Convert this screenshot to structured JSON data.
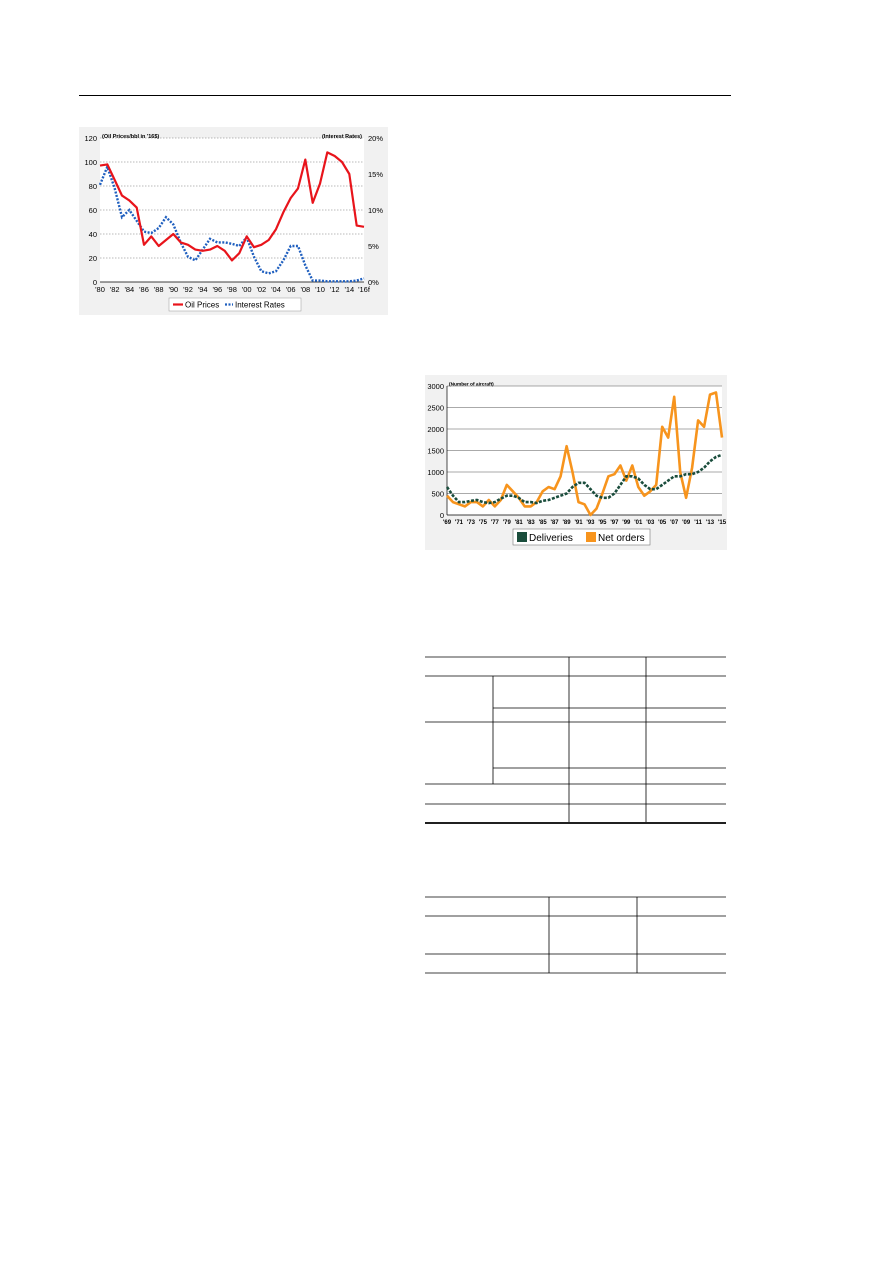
{
  "chart_data": [
    {
      "type": "line",
      "title": "",
      "left_axis_label": "(Oil Prices/bbl in '16$)",
      "right_axis_label": "(Interest Rates)",
      "x_ticks": [
        "'80",
        "'82",
        "'84",
        "'86",
        "'88",
        "'90",
        "'92",
        "'94",
        "'96",
        "'98",
        "'00",
        "'02",
        "'04",
        "'06",
        "'08",
        "'10",
        "'12",
        "'14",
        "'16f"
      ],
      "y_left_ticks": [
        "0",
        "20",
        "40",
        "60",
        "80",
        "100",
        "120"
      ],
      "y_left_range": [
        0,
        120
      ],
      "y_right_ticks": [
        "0%",
        "5%",
        "10%",
        "15%",
        "20%"
      ],
      "y_right_range": [
        0,
        20
      ],
      "grid": "horizontal dotted",
      "legend_position": "bottom",
      "x": [
        1980,
        1981,
        1982,
        1983,
        1984,
        1985,
        1986,
        1987,
        1988,
        1989,
        1990,
        1991,
        1992,
        1993,
        1994,
        1995,
        1996,
        1997,
        1998,
        1999,
        2000,
        2001,
        2002,
        2003,
        2004,
        2005,
        2006,
        2007,
        2008,
        2009,
        2010,
        2011,
        2012,
        2013,
        2014,
        2015,
        2016
      ],
      "series": [
        {
          "name": "Oil Prices",
          "axis": "left",
          "color": "#e8141b",
          "style": "solid",
          "values": [
            97,
            98,
            85,
            72,
            68,
            62,
            31,
            38,
            30,
            35,
            40,
            33,
            31,
            27,
            26,
            27,
            30,
            26,
            18,
            24,
            38,
            29,
            31,
            35,
            44,
            58,
            70,
            78,
            102,
            66,
            82,
            108,
            105,
            100,
            90,
            47,
            46
          ]
        },
        {
          "name": "Interest Rates",
          "axis": "right",
          "color": "#1f5fbf",
          "style": "dotted",
          "values": [
            13.5,
            16,
            13,
            9,
            10,
            8.5,
            7,
            6.8,
            7.5,
            9,
            8,
            5.5,
            3.5,
            3,
            4.5,
            6,
            5.5,
            5.5,
            5.3,
            5,
            6.2,
            3.5,
            1.5,
            1.2,
            1.5,
            3,
            5,
            5,
            2.3,
            0.2,
            0.2,
            0.1,
            0.1,
            0.1,
            0.1,
            0.2,
            0.5
          ]
        }
      ]
    },
    {
      "type": "line",
      "title": "",
      "y_axis_label": "(Number of aircraft)",
      "x_ticks": [
        "'69",
        "'71",
        "'73",
        "'75",
        "'77",
        "'79",
        "'81",
        "'83",
        "'85",
        "'87",
        "'89",
        "'91",
        "'93",
        "'95",
        "'97",
        "'99",
        "'01",
        "'03",
        "'05",
        "'07",
        "'09",
        "'11",
        "'13",
        "'15"
      ],
      "y_ticks": [
        "0",
        "500",
        "1000",
        "1500",
        "2000",
        "2500",
        "3000"
      ],
      "y_range": [
        0,
        3000
      ],
      "grid": "horizontal",
      "legend_position": "bottom",
      "x": [
        1969,
        1970,
        1971,
        1972,
        1973,
        1974,
        1975,
        1976,
        1977,
        1978,
        1979,
        1980,
        1981,
        1982,
        1983,
        1984,
        1985,
        1986,
        1987,
        1988,
        1989,
        1990,
        1991,
        1992,
        1993,
        1994,
        1995,
        1996,
        1997,
        1998,
        1999,
        2000,
        2001,
        2002,
        2003,
        2004,
        2005,
        2006,
        2007,
        2008,
        2009,
        2010,
        2011,
        2012,
        2013,
        2014,
        2015
      ],
      "series": [
        {
          "name": "Deliveries",
          "color": "#1a4d3c",
          "style": "dashed",
          "values": [
            650,
            450,
            300,
            300,
            330,
            350,
            300,
            280,
            300,
            380,
            450,
            450,
            400,
            300,
            300,
            280,
            330,
            350,
            400,
            450,
            500,
            650,
            750,
            750,
            600,
            450,
            400,
            400,
            500,
            700,
            900,
            900,
            850,
            700,
            600,
            600,
            700,
            800,
            900,
            900,
            950,
            950,
            1000,
            1100,
            1250,
            1350,
            1400
          ]
        },
        {
          "name": "Net orders",
          "color": "#f7941d",
          "style": "solid",
          "values": [
            450,
            300,
            250,
            200,
            300,
            300,
            200,
            350,
            200,
            350,
            700,
            550,
            400,
            200,
            200,
            300,
            550,
            650,
            600,
            900,
            1600,
            1000,
            300,
            250,
            0,
            150,
            500,
            900,
            950,
            1150,
            800,
            1150,
            650,
            450,
            550,
            700,
            2050,
            1800,
            2750,
            1000,
            400,
            1100,
            2200,
            2050,
            2800,
            2850,
            1800
          ]
        }
      ]
    }
  ]
}
